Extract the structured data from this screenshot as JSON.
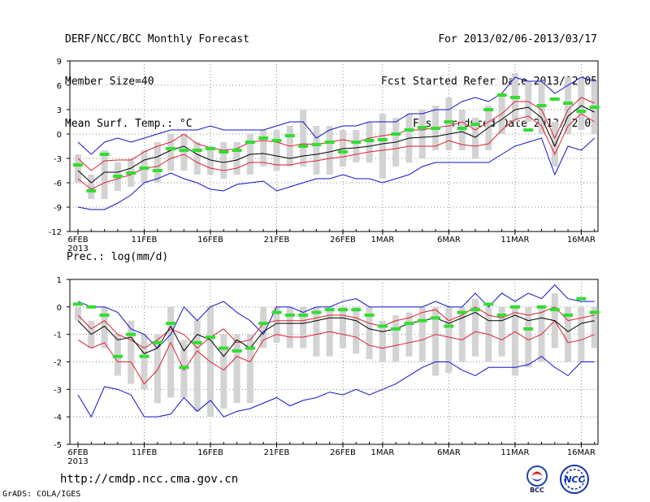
{
  "header": {
    "title": "DERF/NCC/BCC Monthly Forecast",
    "member_size": "Member Size=40",
    "variable": "Mean Surf. Temp.: °C",
    "period": "For 2013/02/06-2013/03/17",
    "fcst_started": "Fcst Started Refer Date 2013/02/05",
    "fcst_produced": "Fcst Produced Date 2013/02/06"
  },
  "footer": {
    "url": "http://cmdp.ncc.cma.gov.cn",
    "credit": "GrADS: COLA/IGES",
    "logo_bcc": "BCC",
    "logo_ncc": "NCC"
  },
  "colors": {
    "box": "#d3d3d3",
    "obs": "#33dd33",
    "mean": "#000000",
    "spread": "#dd2233",
    "extreme": "#1111cc",
    "grid": "#888888"
  },
  "chart_data": [
    {
      "type": "line",
      "title": "Mean Surf. Temp.: °C",
      "xlabel": "",
      "ylabel": "",
      "ylim": [
        -12,
        9
      ],
      "yticks": [
        -12,
        -9,
        -6,
        -3,
        0,
        3,
        6,
        9
      ],
      "x_tick_labels": [
        "6FEB\n2013",
        "11FEB",
        "16FEB",
        "21FEB",
        "26FEB",
        "1MAR",
        "6MAR",
        "11MAR",
        "16MAR"
      ],
      "x_tick_days": [
        0,
        5,
        10,
        15,
        20,
        23,
        28,
        33,
        38
      ],
      "days": 40,
      "series": [
        {
          "name": "ensemble max",
          "values": [
            -1,
            -2.5,
            -1,
            -0.5,
            -1,
            -0.5,
            0,
            0.5,
            0.5,
            0.5,
            1,
            0.5,
            0.5,
            0.5,
            0.5,
            1,
            1.5,
            1.5,
            -0.5,
            0.5,
            1,
            1,
            1.5,
            1.5,
            1.5,
            2.5,
            2.5,
            3,
            3,
            4,
            4.5,
            4,
            5,
            7,
            6.5,
            6.5,
            5,
            6,
            7,
            6.5
          ]
        },
        {
          "name": "upper spread",
          "values": [
            -3,
            -4.5,
            -3.3,
            -3.2,
            -3.2,
            -2.2,
            -1.5,
            -1,
            0,
            -1.2,
            -1.7,
            -2,
            -1.8,
            -1,
            -0.8,
            -1,
            -1.5,
            -1.2,
            -1.3,
            -1,
            -0.7,
            -1,
            -0.5,
            -0.2,
            0,
            0.5,
            0.5,
            0.8,
            1,
            1.5,
            0.5,
            1.5,
            2.5,
            4,
            4,
            3,
            -0.5,
            3,
            4.5,
            3.8
          ]
        },
        {
          "name": "ensemble mean",
          "values": [
            -4.5,
            -6,
            -4.7,
            -4.7,
            -4.2,
            -3.2,
            -2.8,
            -2,
            -1.5,
            -2.5,
            -3.2,
            -3.5,
            -3.2,
            -2.5,
            -2.4,
            -2.7,
            -3,
            -2.7,
            -2.5,
            -2.2,
            -1.8,
            -1.7,
            -1.5,
            -1.2,
            -1,
            -0.5,
            -0.4,
            -0.3,
            0,
            0.3,
            -0.4,
            0.8,
            1.8,
            3,
            3.3,
            2,
            -1.5,
            2.2,
            3.5,
            2.7
          ]
        },
        {
          "name": "lower spread",
          "values": [
            -5.5,
            -6.8,
            -6,
            -5.5,
            -5,
            -4.2,
            -4,
            -3,
            -2.5,
            -3.5,
            -4.2,
            -4.5,
            -4.2,
            -3.5,
            -3.5,
            -3.8,
            -3.8,
            -3.5,
            -3.3,
            -3,
            -2.8,
            -2.5,
            -2.2,
            -2,
            -1.8,
            -1.5,
            -1.5,
            -1.5,
            -0.8,
            -1.3,
            -1.5,
            -1.2,
            0.5,
            1.8,
            2.2,
            1,
            -2.5,
            1,
            2.5,
            1.5
          ]
        },
        {
          "name": "ensemble min",
          "values": [
            -9,
            -9.3,
            -9.3,
            -8.5,
            -7.5,
            -6,
            -5.5,
            -4.8,
            -5.5,
            -6,
            -6.8,
            -7,
            -6.2,
            -6,
            -5.8,
            -7,
            -6.5,
            -6,
            -5.5,
            -5.5,
            -5,
            -5.5,
            -5.5,
            -6,
            -5.5,
            -5,
            -4,
            -3.5,
            -3.5,
            -3.5,
            -3.5,
            -3.5,
            -2.5,
            -1.5,
            -1,
            -0.5,
            -5,
            -1.5,
            -2,
            -0.5
          ]
        },
        {
          "name": "observed/climatology",
          "values": [
            -3.8,
            -7,
            -2.5,
            -5.2,
            -4.8,
            -4.2,
            -4.5,
            -1.8,
            -2,
            -2,
            -1.8,
            -2.2,
            -2,
            -1,
            -0.5,
            -0.8,
            -0.2,
            -1.5,
            -1.3,
            -1,
            -2.2,
            -1,
            -0.8,
            -0.7,
            0,
            0.5,
            0.8,
            0.7,
            1.5,
            0.7,
            1.2,
            3,
            4.8,
            4.5,
            0.5,
            3.5,
            4.3,
            3.8,
            2.8,
            3.3
          ]
        },
        {
          "name": "box high",
          "values": [
            -2.5,
            -5,
            -2,
            -3.5,
            -3,
            -2,
            -1,
            0,
            0,
            -1,
            -1.5,
            -1,
            -1,
            0,
            0.5,
            0.5,
            1,
            3,
            1,
            1,
            0.5,
            0.5,
            1.5,
            2.5,
            2,
            2.5,
            3,
            3.5,
            4.5,
            3,
            2,
            3.5,
            5,
            7.5,
            6.5,
            6.5,
            1.5,
            7,
            7,
            6.5
          ]
        },
        {
          "name": "box low",
          "values": [
            -6,
            -8,
            -8,
            -7,
            -6.5,
            -6,
            -6,
            -4.5,
            -4.5,
            -5,
            -5,
            -5.5,
            -5,
            -5,
            -4,
            -4.5,
            -4,
            -4,
            -5,
            -5,
            -4,
            -3.5,
            -3.5,
            -5.5,
            -4,
            -3.5,
            -3,
            -2,
            -2,
            -2,
            -3,
            -2,
            0,
            1.5,
            1.5,
            0,
            -4,
            0,
            0.5,
            0
          ]
        }
      ]
    },
    {
      "type": "line",
      "title": "Prec.: log(mm/d)",
      "xlabel": "",
      "ylabel": "",
      "ylim": [
        -5,
        1
      ],
      "yticks": [
        -5,
        -4,
        -3,
        -2,
        -1,
        0,
        1
      ],
      "x_tick_labels": [
        "6FEB\n2013",
        "11FEB",
        "16FEB",
        "21FEB",
        "26FEB",
        "1MAR",
        "6MAR",
        "11MAR",
        "16MAR"
      ],
      "x_tick_days": [
        0,
        5,
        10,
        15,
        20,
        23,
        28,
        33,
        38
      ],
      "days": 40,
      "series": [
        {
          "name": "ensemble max",
          "values": [
            0.2,
            0,
            0,
            -0.2,
            -0.8,
            -1,
            -1.5,
            -1,
            0,
            -0.5,
            0,
            0.2,
            -0.2,
            -0.5,
            -1,
            0,
            0,
            -0.2,
            0,
            0,
            0.2,
            0.3,
            0,
            0,
            0,
            0,
            0,
            0.2,
            0,
            0,
            0.5,
            0,
            0.5,
            0.2,
            0.5,
            0.3,
            0.8,
            0.3,
            0.2,
            0.2
          ]
        },
        {
          "name": "upper spread",
          "values": [
            -0.3,
            -0.8,
            -0.5,
            -1,
            -1.2,
            -1.5,
            -1.2,
            -0.8,
            -1,
            -1.5,
            -1.1,
            -0.8,
            -1.3,
            -1.2,
            -0.6,
            -0.5,
            -0.5,
            -0.5,
            -0.4,
            -0.3,
            -0.3,
            -0.4,
            -0.6,
            -0.7,
            -0.5,
            -0.4,
            -0.2,
            -0.1,
            -0.5,
            -0.3,
            0,
            -0.3,
            -0.4,
            -0.2,
            -0.3,
            -0.2,
            0,
            -0.5,
            -0.4,
            -0.3
          ]
        },
        {
          "name": "ensemble mean",
          "values": [
            -0.5,
            -1,
            -0.7,
            -1.2,
            -1.1,
            -1.7,
            -1.5,
            -0.7,
            -1.6,
            -1,
            -1.2,
            -1.8,
            -1.2,
            -1.5,
            -0.9,
            -0.6,
            -0.6,
            -0.6,
            -0.5,
            -0.4,
            -0.4,
            -0.5,
            -0.8,
            -0.9,
            -0.8,
            -0.6,
            -0.5,
            -0.4,
            -0.6,
            -0.4,
            -0.2,
            -0.5,
            -0.5,
            -0.3,
            -0.5,
            -0.4,
            -0.5,
            -0.9,
            -0.6,
            -0.5
          ]
        },
        {
          "name": "lower spread",
          "values": [
            -1.2,
            -1.5,
            -1.3,
            -2,
            -2,
            -2.8,
            -2.3,
            -1.3,
            -2.3,
            -1.6,
            -2,
            -2.3,
            -1.8,
            -2,
            -1.2,
            -1,
            -1.1,
            -1.1,
            -1,
            -0.9,
            -1,
            -1.1,
            -1.4,
            -1.5,
            -1.4,
            -1.3,
            -1.2,
            -1,
            -1.1,
            -1.2,
            -0.9,
            -1,
            -1.2,
            -0.9,
            -1.2,
            -1,
            -0.5,
            -1.3,
            -1.2,
            -1
          ]
        },
        {
          "name": "ensemble min",
          "values": [
            -3.2,
            -4,
            -2.9,
            -3,
            -3.2,
            -4,
            -4,
            -3.9,
            -3.3,
            -3.8,
            -3.4,
            -4,
            -3.8,
            -3.7,
            -3.5,
            -3.3,
            -3.6,
            -3.4,
            -3.3,
            -3.1,
            -3.2,
            -3,
            -3.2,
            -3,
            -2.8,
            -2.5,
            -2.2,
            -2,
            -2,
            -2.3,
            -2.5,
            -2.2,
            -2.2,
            -2.2,
            -2.1,
            -1.8,
            -2.2,
            -2.5,
            -2,
            -2
          ]
        },
        {
          "name": "observed/climatology",
          "values": [
            0.1,
            0,
            -0.3,
            -1.8,
            -1,
            -1.8,
            -1.3,
            -0.6,
            -2.2,
            -1.3,
            -1.1,
            -1.5,
            -1.6,
            -1.5,
            -0.6,
            -0.2,
            -0.3,
            -0.3,
            -0.2,
            -0.1,
            -0.1,
            -0.1,
            -0.3,
            -0.7,
            -0.8,
            -0.6,
            -0.5,
            -0.4,
            -0.7,
            -0.2,
            -0.1,
            0.1,
            -0.3,
            0,
            -0.8,
            0,
            -0.1,
            -0.3,
            0.3,
            -0.2
          ]
        },
        {
          "name": "box high",
          "values": [
            0,
            -0.5,
            0,
            -1,
            -0.5,
            -1,
            -1,
            0,
            -1.2,
            -0.5,
            0,
            -1,
            -1,
            -1,
            0,
            0,
            0,
            0,
            0,
            0,
            0,
            0,
            0,
            -0.5,
            -0.3,
            -0.2,
            0,
            0,
            0,
            0,
            0.3,
            0,
            0,
            0,
            0,
            0,
            0.5,
            0,
            0,
            0
          ]
        },
        {
          "name": "box low",
          "values": [
            -0.5,
            -1.5,
            -1.5,
            -2.5,
            -2.8,
            -3,
            -3.5,
            -3.3,
            -3.3,
            -3.8,
            -4,
            -3.7,
            -3.5,
            -3.5,
            -1.5,
            -1.3,
            -1.5,
            -1.5,
            -1.8,
            -1.8,
            -1.5,
            -1.7,
            -1.9,
            -2,
            -2,
            -1.8,
            -2,
            -2.5,
            -2.4,
            -2,
            -1.8,
            -2,
            -1.8,
            -2.5,
            -2.2,
            -2,
            -1.5,
            -2,
            -2,
            -1.5
          ]
        }
      ]
    }
  ]
}
